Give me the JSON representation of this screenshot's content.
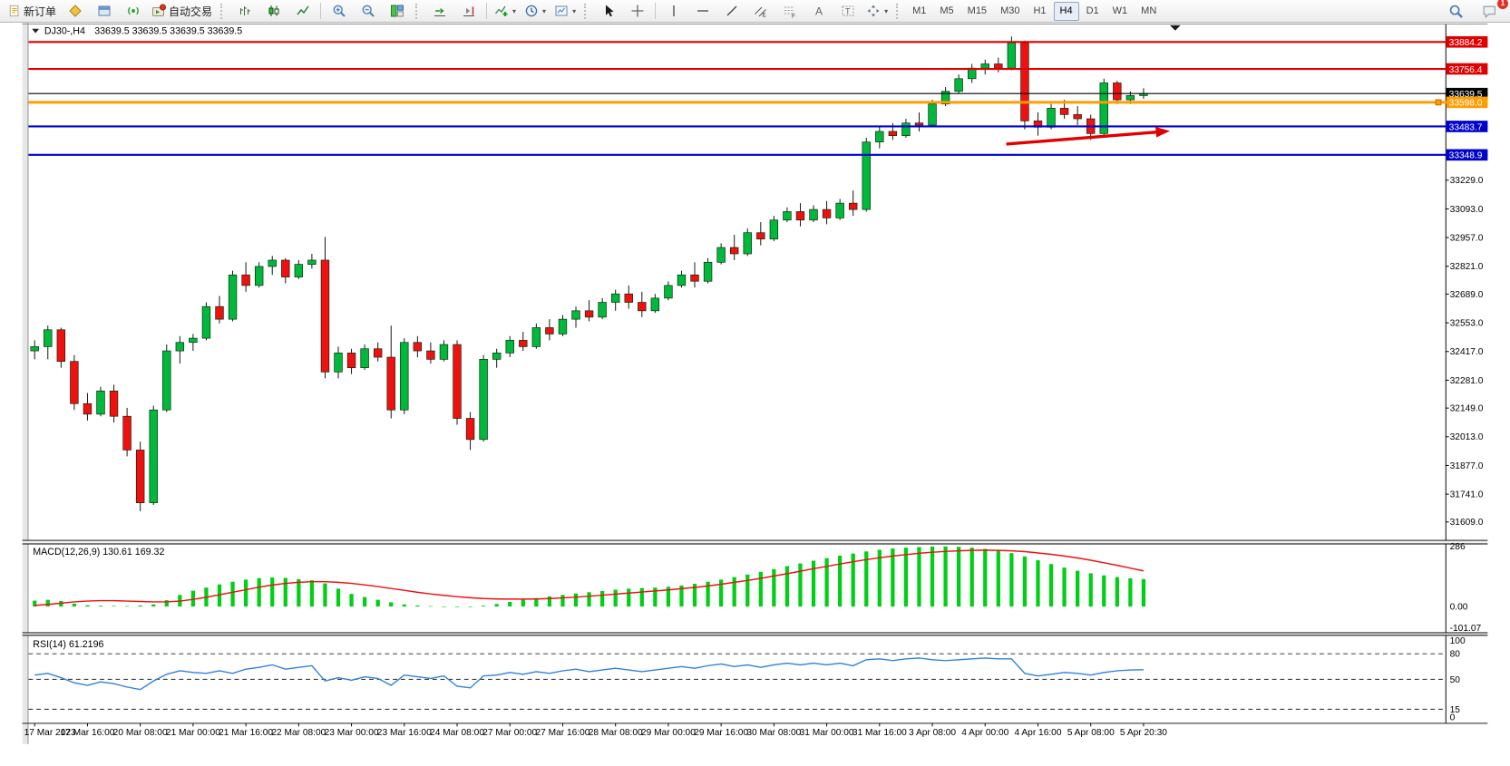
{
  "toolbar": {
    "new_order_label": "新订单",
    "autotrading_label": "自动交易",
    "timeframes": [
      "M1",
      "M5",
      "M15",
      "M30",
      "H1",
      "H4",
      "D1",
      "W1",
      "MN"
    ],
    "active_timeframe": "H4",
    "chat_badge": "1"
  },
  "chart": {
    "symbol_period": "DJ30-,H4",
    "ohlc_line": "33639.5 33639.5 33639.5 33639.5"
  },
  "chart_data": {
    "type": "candlestick",
    "symbol": "DJ30-",
    "period": "H4",
    "bars_per_label": 4,
    "x_labels": [
      "17 Mar 2023",
      "17 Mar 16:00",
      "20 Mar 08:00",
      "21 Mar 00:00",
      "21 Mar 16:00",
      "22 Mar 08:00",
      "23 Mar 00:00",
      "23 Mar 16:00",
      "24 Mar 08:00",
      "27 Mar 00:00",
      "27 Mar 16:00",
      "28 Mar 08:00",
      "29 Mar 00:00",
      "29 Mar 16:00",
      "30 Mar 08:00",
      "31 Mar 00:00",
      "31 Mar 16:00",
      "3 Apr 08:00",
      "4 Apr 00:00",
      "4 Apr 16:00",
      "5 Apr 08:00",
      "5 Apr 20:30"
    ],
    "candles": [
      [
        32420,
        32470,
        32380,
        32440
      ],
      [
        32440,
        32540,
        32380,
        32520
      ],
      [
        32520,
        32530,
        32340,
        32370
      ],
      [
        32370,
        32400,
        32140,
        32170
      ],
      [
        32170,
        32220,
        32090,
        32120
      ],
      [
        32120,
        32250,
        32110,
        32230
      ],
      [
        32230,
        32260,
        32080,
        32110
      ],
      [
        32110,
        32150,
        31920,
        31950
      ],
      [
        31950,
        31990,
        31660,
        31700
      ],
      [
        31700,
        32160,
        31690,
        32140
      ],
      [
        32140,
        32450,
        32130,
        32420
      ],
      [
        32420,
        32490,
        32360,
        32460
      ],
      [
        32460,
        32500,
        32420,
        32480
      ],
      [
        32480,
        32650,
        32470,
        32630
      ],
      [
        32630,
        32680,
        32550,
        32570
      ],
      [
        32570,
        32800,
        32560,
        32780
      ],
      [
        32780,
        32840,
        32700,
        32730
      ],
      [
        32730,
        32840,
        32720,
        32820
      ],
      [
        32820,
        32870,
        32780,
        32850
      ],
      [
        32850,
        32860,
        32740,
        32770
      ],
      [
        32770,
        32850,
        32760,
        32830
      ],
      [
        32830,
        32880,
        32810,
        32850
      ],
      [
        32850,
        32960,
        32290,
        32320
      ],
      [
        32320,
        32440,
        32290,
        32410
      ],
      [
        32410,
        32430,
        32310,
        32340
      ],
      [
        32340,
        32450,
        32330,
        32430
      ],
      [
        32430,
        32460,
        32370,
        32390
      ],
      [
        32390,
        32540,
        32100,
        32140
      ],
      [
        32140,
        32480,
        32120,
        32460
      ],
      [
        32460,
        32490,
        32390,
        32420
      ],
      [
        32420,
        32460,
        32360,
        32380
      ],
      [
        32380,
        32470,
        32370,
        32450
      ],
      [
        32450,
        32470,
        32070,
        32100
      ],
      [
        32100,
        32130,
        31950,
        32000
      ],
      [
        32000,
        32400,
        31990,
        32380
      ],
      [
        32380,
        32430,
        32340,
        32410
      ],
      [
        32410,
        32490,
        32390,
        32470
      ],
      [
        32470,
        32510,
        32420,
        32440
      ],
      [
        32440,
        32550,
        32430,
        32530
      ],
      [
        32530,
        32570,
        32470,
        32500
      ],
      [
        32500,
        32590,
        32490,
        32570
      ],
      [
        32570,
        32630,
        32530,
        32610
      ],
      [
        32610,
        32660,
        32560,
        32580
      ],
      [
        32580,
        32670,
        32570,
        32650
      ],
      [
        32650,
        32710,
        32610,
        32690
      ],
      [
        32690,
        32730,
        32620,
        32650
      ],
      [
        32650,
        32700,
        32580,
        32610
      ],
      [
        32610,
        32690,
        32600,
        32670
      ],
      [
        32670,
        32750,
        32660,
        32730
      ],
      [
        32730,
        32800,
        32720,
        32780
      ],
      [
        32780,
        32840,
        32720,
        32750
      ],
      [
        32750,
        32860,
        32740,
        32840
      ],
      [
        32840,
        32930,
        32830,
        32910
      ],
      [
        32910,
        32970,
        32850,
        32880
      ],
      [
        32880,
        33000,
        32870,
        32980
      ],
      [
        32980,
        33030,
        32920,
        32950
      ],
      [
        32950,
        33060,
        32940,
        33040
      ],
      [
        33040,
        33100,
        33030,
        33080
      ],
      [
        33080,
        33120,
        33010,
        33040
      ],
      [
        33040,
        33110,
        33030,
        33090
      ],
      [
        33090,
        33130,
        33020,
        33050
      ],
      [
        33050,
        33140,
        33040,
        33120
      ],
      [
        33120,
        33180,
        33060,
        33090
      ],
      [
        33090,
        33430,
        33080,
        33410
      ],
      [
        33410,
        33480,
        33380,
        33460
      ],
      [
        33460,
        33500,
        33420,
        33440
      ],
      [
        33440,
        33520,
        33430,
        33500
      ],
      [
        33500,
        33550,
        33460,
        33490
      ],
      [
        33490,
        33610,
        33480,
        33590
      ],
      [
        33590,
        33670,
        33580,
        33650
      ],
      [
        33650,
        33730,
        33640,
        33710
      ],
      [
        33710,
        33780,
        33690,
        33760
      ],
      [
        33760,
        33800,
        33730,
        33780
      ],
      [
        33780,
        33810,
        33740,
        33760
      ],
      [
        33760,
        33910,
        33750,
        33880
      ],
      [
        33880,
        33890,
        33470,
        33510
      ],
      [
        33510,
        33550,
        33440,
        33480
      ],
      [
        33480,
        33590,
        33470,
        33570
      ],
      [
        33570,
        33610,
        33520,
        33540
      ],
      [
        33540,
        33580,
        33490,
        33520
      ],
      [
        33520,
        33540,
        33420,
        33450
      ],
      [
        33450,
        33710,
        33440,
        33690
      ],
      [
        33690,
        33700,
        33590,
        33610
      ],
      [
        33610,
        33650,
        33590,
        33630
      ],
      [
        33630,
        33665,
        33615,
        33639.5
      ]
    ],
    "colors": {
      "up": "#00b93c",
      "down": "#f01010",
      "wick": "#111111",
      "level_red": "#e00000",
      "level_blue": "#0000cc",
      "level_orange": "#ff9c00",
      "macd_hist": "#00cf16",
      "macd_signal": "#f01010",
      "rsi_line": "#2f80d8",
      "arrow": "#e00000"
    },
    "current_price": {
      "value": 33639.5,
      "label": "33639.5"
    },
    "levels": [
      {
        "price": 33884.2,
        "label": "33884.2",
        "color": "#e00000",
        "width": 2.2
      },
      {
        "price": 33756.4,
        "label": "33756.4",
        "color": "#e00000",
        "width": 2.2
      },
      {
        "price": 33639.5,
        "label": "33639.5",
        "color": "#000000",
        "width": 1.2
      },
      {
        "price": 33598.0,
        "label": "33598.0",
        "color": "#ff9c00",
        "width": 3,
        "handle": true
      },
      {
        "price": 33483.7,
        "label": "33483.7",
        "color": "#0000cc",
        "width": 2.2
      },
      {
        "price": 33348.9,
        "label": "33348.9",
        "color": "#0000cc",
        "width": 2.2
      }
    ],
    "price_axis_ticks": [
      33229.0,
      33093.0,
      32957.0,
      32821.0,
      32689.0,
      32553.0,
      32417.0,
      32281.0,
      32149.0,
      32013.0,
      31877.0,
      31741.0,
      31609.0
    ],
    "indicators": {
      "macd": {
        "label": "MACD(12,26,9) 130.61 169.32",
        "scale": [
          {
            "v": 286,
            "l": "286"
          },
          {
            "v": 0,
            "l": "0.00"
          },
          {
            "v": -101.07,
            "l": "-101.07"
          }
        ],
        "histogram": [
          28,
          32,
          26,
          14,
          6,
          4,
          3,
          2,
          5,
          10,
          30,
          55,
          75,
          90,
          105,
          118,
          128,
          135,
          138,
          136,
          130,
          125,
          110,
          85,
          60,
          45,
          32,
          20,
          10,
          5,
          2,
          0,
          -2,
          0,
          4,
          12,
          22,
          32,
          40,
          48,
          55,
          62,
          68,
          74,
          80,
          85,
          88,
          90,
          94,
          100,
          108,
          118,
          128,
          140,
          152,
          165,
          178,
          192,
          205,
          218,
          230,
          242,
          252,
          262,
          270,
          276,
          280,
          283,
          285,
          286,
          284,
          280,
          274,
          266,
          254,
          238,
          220,
          202,
          185,
          170,
          158,
          148,
          140,
          134,
          130.61
        ],
        "signal": [
          5,
          10,
          16,
          22,
          26,
          28,
          28,
          26,
          24,
          22,
          22,
          26,
          34,
          44,
          56,
          68,
          80,
          92,
          102,
          110,
          115,
          118,
          118,
          115,
          110,
          103,
          95,
          86,
          77,
          68,
          60,
          53,
          47,
          42,
          38,
          36,
          35,
          35,
          36,
          38,
          41,
          45,
          49,
          54,
          59,
          64,
          69,
          74,
          79,
          85,
          91,
          98,
          106,
          115,
          124,
          134,
          145,
          156,
          168,
          180,
          191,
          202,
          213,
          223,
          232,
          240,
          247,
          253,
          258,
          262,
          265,
          267,
          268,
          267,
          265,
          261,
          255,
          248,
          240,
          231,
          220,
          208,
          196,
          183,
          169.32
        ]
      },
      "rsi": {
        "label": "RSI(14) 61.2196",
        "scale": [
          {
            "v": 100,
            "l": "100"
          },
          {
            "v": 80,
            "l": "80"
          },
          {
            "v": 50,
            "l": "50"
          },
          {
            "v": 15,
            "l": "15"
          },
          {
            "v": 0,
            "l": "0"
          }
        ],
        "level_lines": [
          80,
          50,
          15
        ],
        "values": [
          55,
          57,
          52,
          46,
          43,
          47,
          45,
          41,
          38,
          48,
          56,
          60,
          58,
          57,
          60,
          57,
          62,
          64,
          67,
          62,
          64,
          66,
          48,
          52,
          49,
          53,
          51,
          43,
          55,
          53,
          51,
          54,
          42,
          40,
          54,
          55,
          58,
          56,
          59,
          57,
          60,
          62,
          59,
          61,
          63,
          61,
          59,
          61,
          63,
          65,
          63,
          66,
          68,
          65,
          67,
          64,
          67,
          69,
          67,
          69,
          67,
          69,
          66,
          73,
          74,
          72,
          74,
          75,
          73,
          72,
          73,
          74,
          75,
          74,
          74,
          57,
          54,
          56,
          58,
          57,
          55,
          58,
          60,
          61,
          61.22
        ]
      }
    },
    "annotations": [
      {
        "type": "arrow",
        "color": "#e00000",
        "from": {
          "bar": 73.6,
          "price": 33400
        },
        "to": {
          "bar": 86,
          "price": 33462
        }
      }
    ]
  }
}
